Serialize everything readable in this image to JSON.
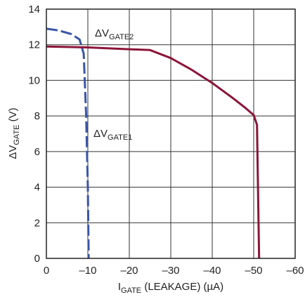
{
  "chart_data": {
    "type": "line",
    "title": "",
    "xlabel": {
      "main": "I",
      "sub": "GATE",
      "rest": " (LEAKAGE) (µA)"
    },
    "ylabel": {
      "main": "ΔV",
      "sub": "GATE",
      "rest": " (V)"
    },
    "xlim": [
      0,
      -60
    ],
    "ylim": [
      0,
      14
    ],
    "x_ticks": [
      0,
      -10,
      -20,
      -30,
      -40,
      -50,
      -60
    ],
    "x_tick_labels": [
      "0",
      "–10",
      "–20",
      "–30",
      "–40",
      "–50",
      "–60"
    ],
    "y_ticks": [
      0,
      2,
      4,
      6,
      8,
      10,
      12,
      14
    ],
    "y_tick_labels": [
      "0",
      "2",
      "4",
      "6",
      "8",
      "10",
      "12",
      "14"
    ],
    "grid": true,
    "series": [
      {
        "label": {
          "main": "ΔV",
          "sub": "GATE2"
        },
        "color": "#3a56a8",
        "style": "dashed",
        "points": [
          [
            0,
            12.9
          ],
          [
            -3,
            12.8
          ],
          [
            -6,
            12.6
          ],
          [
            -8,
            12.3
          ],
          [
            -9,
            11.5
          ],
          [
            -9.6,
            8
          ],
          [
            -10,
            4
          ],
          [
            -10.2,
            0
          ]
        ]
      },
      {
        "label": {
          "main": "ΔV",
          "sub": "GATE1"
        },
        "color": "#8b1538",
        "style": "solid",
        "points": [
          [
            0,
            11.9
          ],
          [
            -10,
            11.85
          ],
          [
            -20,
            11.75
          ],
          [
            -25,
            11.7
          ],
          [
            -30,
            11.25
          ],
          [
            -35,
            10.6
          ],
          [
            -40,
            9.85
          ],
          [
            -45,
            9.0
          ],
          [
            -48,
            8.45
          ],
          [
            -50,
            8.05
          ],
          [
            -50.8,
            7.5
          ],
          [
            -51.3,
            0
          ]
        ]
      }
    ]
  }
}
